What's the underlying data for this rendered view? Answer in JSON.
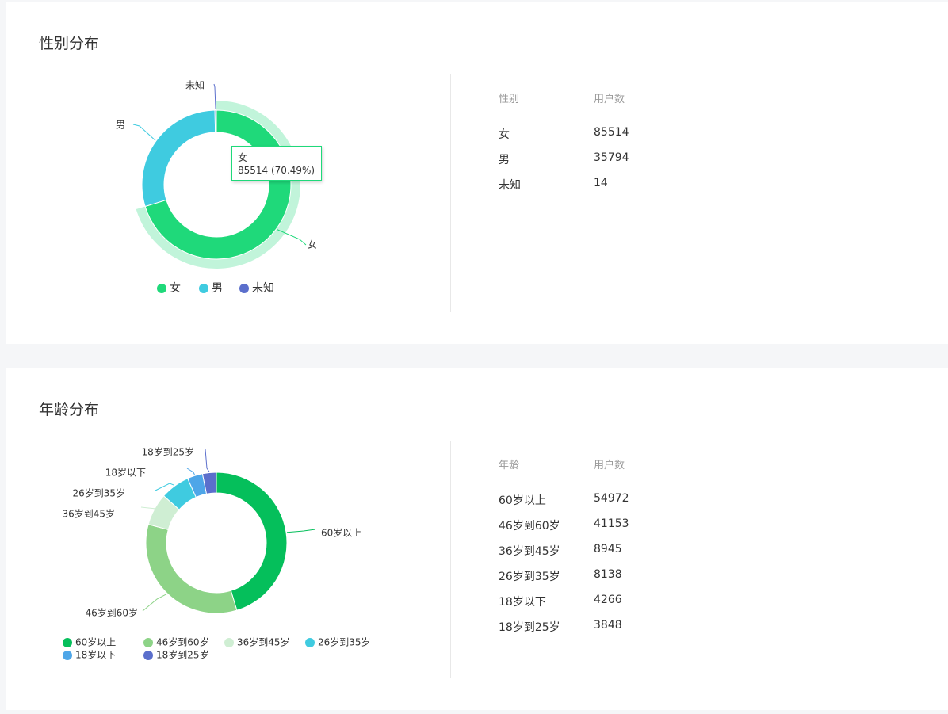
{
  "gender": {
    "title": "性别分布",
    "table_headers": [
      "性别",
      "用户数"
    ],
    "rows": [
      [
        "女",
        "85514"
      ],
      [
        "男",
        "35794"
      ],
      [
        "未知",
        "14"
      ]
    ],
    "tooltip": {
      "name": "女",
      "value": "85514 (70.49%)"
    }
  },
  "age": {
    "title": "年龄分布",
    "table_headers": [
      "年龄",
      "用户数"
    ],
    "rows": [
      [
        "60岁以上",
        "54972"
      ],
      [
        "46岁到60岁",
        "41153"
      ],
      [
        "36岁到45岁",
        "8945"
      ],
      [
        "26岁到35岁",
        "8138"
      ],
      [
        "18岁以下",
        "4266"
      ],
      [
        "18岁到25岁",
        "3848"
      ]
    ]
  },
  "chart_data": [
    {
      "type": "pie",
      "variant": "donut",
      "categories": [
        "女",
        "男",
        "未知"
      ],
      "values": [
        85514,
        35794,
        14
      ],
      "colors": [
        "#1fd97a",
        "#3fcbe0",
        "#5b6fcc"
      ],
      "highlighted": "女",
      "legend": "bottom"
    },
    {
      "type": "pie",
      "variant": "donut",
      "categories": [
        "60岁以上",
        "46岁到60岁",
        "36岁到45岁",
        "26岁到35岁",
        "18岁以下",
        "18岁到25岁"
      ],
      "values": [
        54972,
        41153,
        8945,
        8138,
        4266,
        3848
      ],
      "colors": [
        "#05bf5b",
        "#8dd387",
        "#cfeed3",
        "#3fcbe0",
        "#4ea6e8",
        "#5b6fcc"
      ],
      "legend": "bottom"
    }
  ]
}
